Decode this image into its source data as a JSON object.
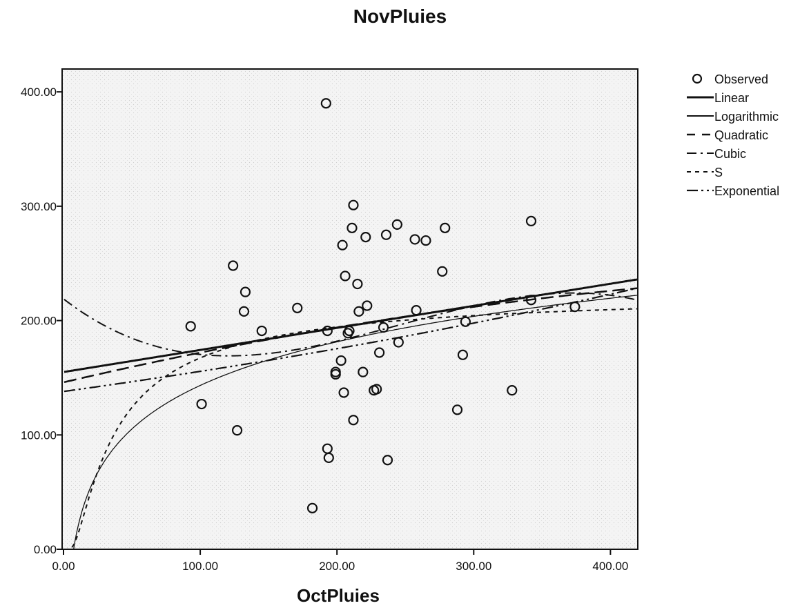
{
  "chart_data": {
    "type": "scatter",
    "title": "NovPluies",
    "xlabel": "OctPluies",
    "ylabel": "",
    "xlim": [
      0,
      420
    ],
    "ylim": [
      0,
      420
    ],
    "x_ticks": [
      "0.00",
      "100.00",
      "200.00",
      "300.00",
      "400.00"
    ],
    "y_ticks": [
      "0.00",
      "100.00",
      "200.00",
      "300.00",
      "400.00"
    ],
    "legend_position": "right",
    "grid": false,
    "observed": [
      {
        "x": 93,
        "y": 195
      },
      {
        "x": 101,
        "y": 127
      },
      {
        "x": 124,
        "y": 248
      },
      {
        "x": 127,
        "y": 104
      },
      {
        "x": 132,
        "y": 208
      },
      {
        "x": 133,
        "y": 225
      },
      {
        "x": 145,
        "y": 191
      },
      {
        "x": 171,
        "y": 211
      },
      {
        "x": 182,
        "y": 36
      },
      {
        "x": 192,
        "y": 390
      },
      {
        "x": 193,
        "y": 191
      },
      {
        "x": 193,
        "y": 88
      },
      {
        "x": 194,
        "y": 80
      },
      {
        "x": 199,
        "y": 155
      },
      {
        "x": 199,
        "y": 153
      },
      {
        "x": 203,
        "y": 165
      },
      {
        "x": 204,
        "y": 266
      },
      {
        "x": 205,
        "y": 137
      },
      {
        "x": 206,
        "y": 239
      },
      {
        "x": 208,
        "y": 189
      },
      {
        "x": 209,
        "y": 191
      },
      {
        "x": 211,
        "y": 281
      },
      {
        "x": 212,
        "y": 301
      },
      {
        "x": 212,
        "y": 113
      },
      {
        "x": 215,
        "y": 232
      },
      {
        "x": 216,
        "y": 208
      },
      {
        "x": 219,
        "y": 155
      },
      {
        "x": 221,
        "y": 273
      },
      {
        "x": 222,
        "y": 213
      },
      {
        "x": 227,
        "y": 139
      },
      {
        "x": 229,
        "y": 140
      },
      {
        "x": 231,
        "y": 172
      },
      {
        "x": 234,
        "y": 194
      },
      {
        "x": 236,
        "y": 275
      },
      {
        "x": 237,
        "y": 78
      },
      {
        "x": 244,
        "y": 284
      },
      {
        "x": 245,
        "y": 181
      },
      {
        "x": 257,
        "y": 271
      },
      {
        "x": 258,
        "y": 209
      },
      {
        "x": 265,
        "y": 270
      },
      {
        "x": 277,
        "y": 243
      },
      {
        "x": 279,
        "y": 281
      },
      {
        "x": 288,
        "y": 122
      },
      {
        "x": 292,
        "y": 170
      },
      {
        "x": 294,
        "y": 199
      },
      {
        "x": 328,
        "y": 139
      },
      {
        "x": 342,
        "y": 287
      },
      {
        "x": 342,
        "y": 218
      },
      {
        "x": 374,
        "y": 212
      }
    ],
    "series": [
      {
        "name": "Linear",
        "model": "linear",
        "params": {
          "b0": 155,
          "b1": 0.193
        },
        "style": "solid",
        "width": 3
      },
      {
        "name": "Logarithmic",
        "model": "logarithmic",
        "params": {
          "b0": -110,
          "b1": 55
        },
        "style": "solid",
        "width": 1.3
      },
      {
        "name": "Quadratic",
        "model": "quadratic",
        "params": {
          "b0": 146,
          "b1": 0.28,
          "b2": -0.0002
        },
        "style": "long-dash",
        "width": 2.5
      },
      {
        "name": "Cubic",
        "model": "cubic",
        "params": {
          "b0": 219,
          "b1": -0.9245,
          "b2": 0.0050633,
          "b3": -6.8306e-06
        },
        "style": "dash-dot",
        "width": 2
      },
      {
        "name": "S",
        "model": "s",
        "params": {
          "b0": 5.42,
          "b1": -30
        },
        "style": "short-dash",
        "width": 2
      },
      {
        "name": "Exponential",
        "model": "exponential",
        "params": {
          "b0": 138,
          "b1": 0.0012
        },
        "style": "dash-dot-dot",
        "width": 2.2
      }
    ],
    "legend": {
      "observed_label": "Observed"
    }
  }
}
